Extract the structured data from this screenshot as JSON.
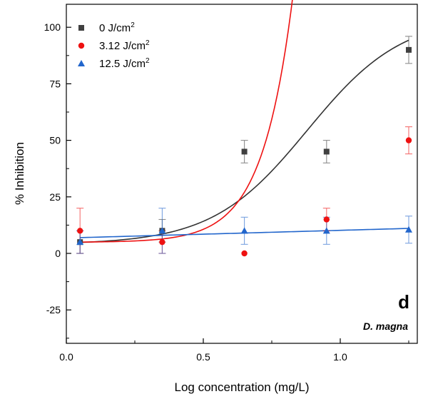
{
  "chart_data": {
    "type": "scatter",
    "xlabel": "Log concentration (mg/L)",
    "ylabel": "% Inhibition",
    "xlim": [
      0.0,
      1.25
    ],
    "ylim": [
      -40,
      110
    ],
    "x_ticks": [
      {
        "value": 0.0,
        "label": "0.0"
      },
      {
        "value": 0.5,
        "label": "0.5"
      },
      {
        "value": 1.0,
        "label": "1.0"
      }
    ],
    "y_ticks": [
      {
        "value": -25,
        "label": "-25"
      },
      {
        "value": 0,
        "label": "0"
      },
      {
        "value": 25,
        "label": "25"
      },
      {
        "value": 50,
        "label": "50"
      },
      {
        "value": 75,
        "label": "75"
      },
      {
        "value": 100,
        "label": "100"
      }
    ],
    "grid": false,
    "legend_position": "top-left",
    "series": [
      {
        "name": "0 J/cm",
        "name_superscript": "2",
        "marker": "square",
        "color": "#404040",
        "fit_color": "#333333",
        "x": [
          0.05,
          0.35,
          0.65,
          0.95,
          1.25
        ],
        "y": [
          5,
          10,
          45,
          45,
          90
        ],
        "err": [
          5,
          5,
          5,
          5,
          6
        ],
        "fit": {
          "type": "logistic",
          "bottom": 4,
          "top": 105,
          "x50": 0.88,
          "slope": 2.5
        }
      },
      {
        "name": "3.12 J/cm",
        "name_superscript": "2",
        "marker": "circle",
        "color": "#ee1111",
        "fit_color": "#ee1111",
        "x": [
          0.05,
          0.35,
          0.65,
          0.95,
          1.25
        ],
        "y": [
          10,
          5,
          0,
          15,
          50
        ],
        "err": [
          10,
          5,
          0,
          5,
          6
        ],
        "fit": {
          "type": "exponential",
          "base": 5,
          "a": 0.1,
          "k": 9.0
        }
      },
      {
        "name": "12.5 J/cm",
        "name_superscript": "2",
        "marker": "triangle",
        "color": "#2266cc",
        "fit_color": "#2266cc",
        "x": [
          0.05,
          0.35,
          0.65,
          0.95,
          1.25
        ],
        "y": [
          5,
          10,
          10,
          10,
          10.5
        ],
        "err": [
          5,
          10,
          6,
          6,
          6
        ],
        "fit": {
          "type": "linear",
          "intercept": 6.8,
          "slope": 3.4
        }
      }
    ],
    "annotations": {
      "panel_letter": "d",
      "species": "D. magna"
    }
  }
}
